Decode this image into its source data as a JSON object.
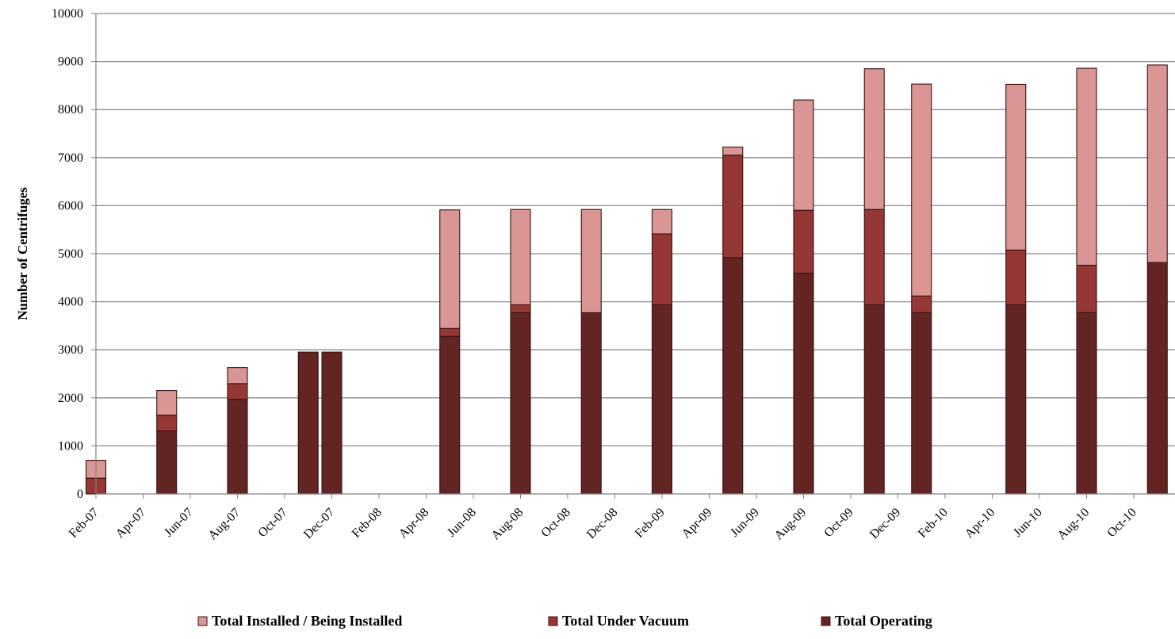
{
  "chart_data": {
    "type": "bar",
    "stacked": true,
    "title": "",
    "xlabel": "",
    "ylabel": "Number of Centrifuges",
    "ylim": [
      0,
      10000
    ],
    "yticks": [
      0,
      1000,
      2000,
      3000,
      4000,
      5000,
      6000,
      7000,
      8000,
      9000,
      10000
    ],
    "grid": true,
    "legend_position": "bottom",
    "x_ticks": [
      "Feb-07",
      "Apr-07",
      "Jun-07",
      "Aug-07",
      "Oct-07",
      "Dec-07",
      "Feb-08",
      "Apr-08",
      "Jun-08",
      "Aug-08",
      "Oct-08",
      "Dec-08",
      "Feb-09",
      "Apr-09",
      "Jun-09",
      "Aug-09",
      "Oct-09",
      "Dec-09",
      "Feb-10",
      "Apr-10",
      "Jun-10",
      "Aug-10",
      "Oct-10"
    ],
    "dates": [
      "Feb-07",
      "May-07",
      "Aug-07",
      "Nov-07",
      "Dec-07",
      "May-08",
      "Aug-08",
      "Nov-08",
      "Feb-09",
      "May-09",
      "Aug-09",
      "Nov-09",
      "Jan-10",
      "May-10",
      "Aug-10",
      "Nov-10"
    ],
    "series": [
      {
        "name": "Total Operating",
        "color": "#632523",
        "values": [
          0,
          1312,
          1968,
          2952,
          2952,
          3280,
          3772,
          3772,
          3936,
          4920,
          4592,
          3936,
          3772,
          3936,
          3772,
          4816
        ]
      },
      {
        "name": "Total Under Vacuum",
        "color": "#953735",
        "values": [
          328,
          328,
          328,
          0,
          0,
          164,
          164,
          0,
          1476,
          2132,
          1312,
          1984,
          348,
          1140,
          988,
          0
        ]
      },
      {
        "name": "Total Installed / Being Installed",
        "color": "#d99694",
        "values": [
          372,
          512,
          334,
          0,
          0,
          2468,
          1984,
          2148,
          508,
          168,
          2296,
          2930,
          4410,
          3448,
          4100,
          4112
        ]
      }
    ],
    "legend": [
      "Total Installed / Being Installed",
      "Total Under Vacuum",
      "Total Operating"
    ]
  }
}
